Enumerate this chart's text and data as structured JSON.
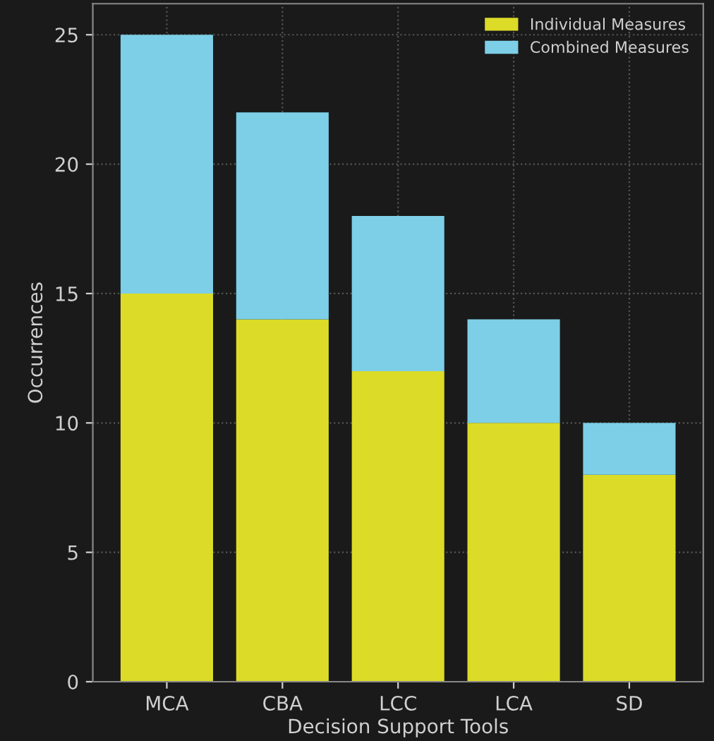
{
  "chart_data": {
    "type": "bar",
    "stacked": true,
    "xlabel": "Decision Support Tools",
    "ylabel": "Occurrences",
    "categories": [
      "MCA",
      "CBA",
      "LCC",
      "LCA",
      "SD"
    ],
    "series": [
      {
        "name": "Individual Measures",
        "color": "#dcdc28",
        "values": [
          15,
          14,
          12,
          10,
          8
        ]
      },
      {
        "name": "Combined Measures",
        "color": "#7ccfe6",
        "values": [
          10,
          8,
          6,
          4,
          2
        ]
      }
    ],
    "ylim": [
      0,
      26.2
    ],
    "yticks": [
      0,
      5,
      10,
      15,
      20,
      25
    ],
    "grid": true,
    "legend": "top right"
  }
}
